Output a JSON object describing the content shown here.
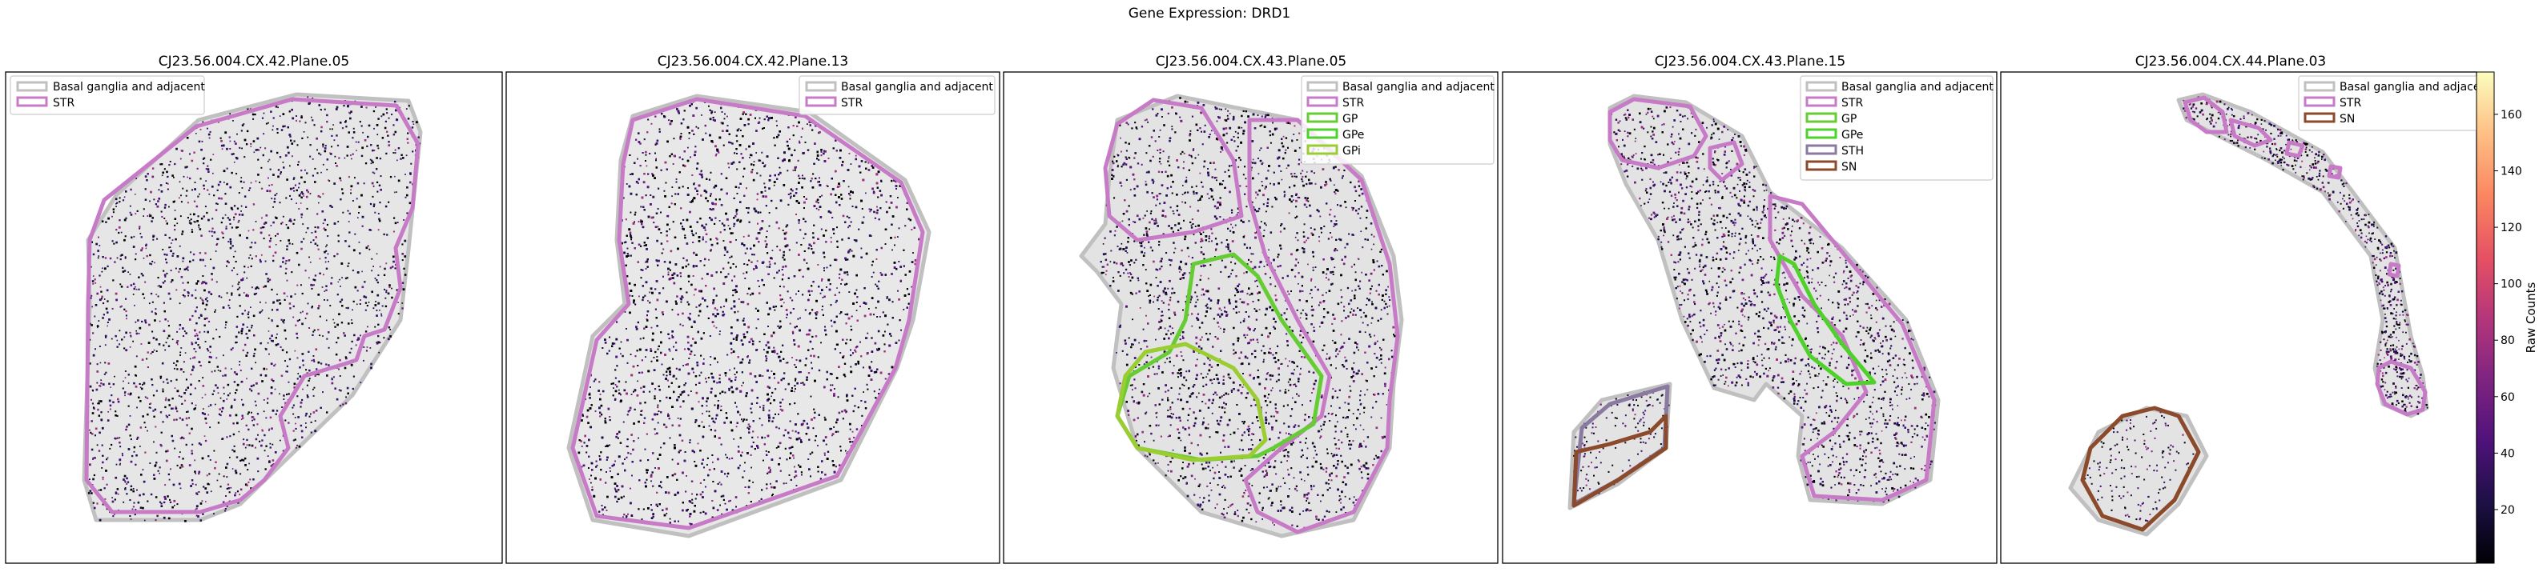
{
  "figure": {
    "suptitle": "Gene Expression: DRD1"
  },
  "colors": {
    "basal_ganglia": "#c0c0c0",
    "STR": "#c77bc7",
    "GP": "#66cc33",
    "GPe": "#4fd12b",
    "GPi": "#9acd32",
    "STH": "#8a7aa0",
    "SN": "#8b4a2b",
    "frame": "#000000"
  },
  "chart_data": [
    {
      "type": "scatter",
      "title": "CJ23.56.004.CX.42.Plane.05",
      "legend_entries": [
        "Basal ganglia and adjacent",
        "STR"
      ],
      "legend_placement": "top-left",
      "regions": [
        "Basal ganglia and adjacent",
        "STR"
      ],
      "density": "medium",
      "colorbar_max_shown": 170
    },
    {
      "type": "scatter",
      "title": "CJ23.56.004.CX.42.Plane.13",
      "legend_entries": [
        "Basal ganglia and adjacent",
        "STR"
      ],
      "legend_placement": "top-right",
      "regions": [
        "Basal ganglia and adjacent",
        "STR"
      ],
      "density": "high"
    },
    {
      "type": "scatter",
      "title": "CJ23.56.004.CX.43.Plane.05",
      "legend_entries": [
        "Basal ganglia and adjacent",
        "STR",
        "GP",
        "GPe",
        "GPi"
      ],
      "legend_placement": "top-right",
      "regions": [
        "Basal ganglia and adjacent",
        "STR",
        "GP",
        "GPe",
        "GPi"
      ],
      "density": "high"
    },
    {
      "type": "scatter",
      "title": "CJ23.56.004.CX.43.Plane.15",
      "legend_entries": [
        "Basal ganglia and adjacent",
        "STR",
        "GP",
        "GPe",
        "STH",
        "SN"
      ],
      "legend_placement": "top-right",
      "regions": [
        "Basal ganglia and adjacent",
        "STR",
        "GP",
        "GPe",
        "STH",
        "SN"
      ],
      "density": "medium"
    },
    {
      "type": "scatter",
      "title": "CJ23.56.004.CX.44.Plane.03",
      "legend_entries": [
        "Basal ganglia and adjacent",
        "STR",
        "SN"
      ],
      "legend_placement": "top-right",
      "regions": [
        "Basal ganglia and adjacent",
        "STR",
        "SN"
      ],
      "density": "low"
    }
  ],
  "colorbar": {
    "label": "Raw Counts",
    "ticks": [
      "20",
      "40",
      "60",
      "80",
      "100",
      "120",
      "140",
      "160"
    ],
    "tick_values": [
      20,
      40,
      60,
      80,
      100,
      120,
      140,
      160
    ],
    "range": [
      1,
      175
    ],
    "colormap": "magma"
  }
}
